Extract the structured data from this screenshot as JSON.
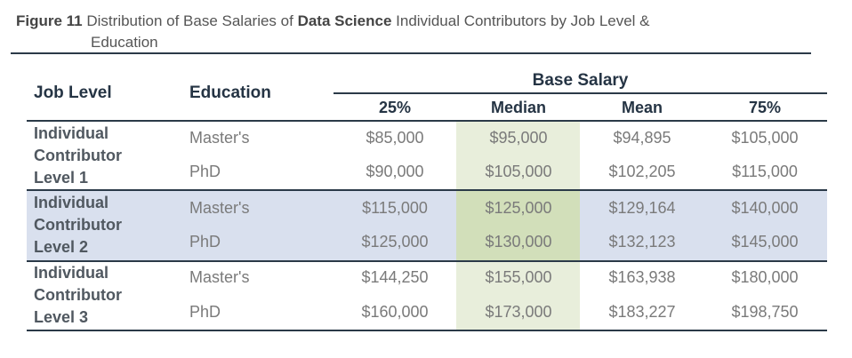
{
  "title": {
    "figure": "Figure 11",
    "pre": "Distribution of Base Salaries of",
    "bold": "Data Science",
    "post": "Individual Contributors by Job Level &",
    "line2": "Education"
  },
  "headers": {
    "job_level": "Job Level",
    "education": "Education",
    "group": "Base Salary",
    "cols": [
      "25%",
      "Median",
      "Mean",
      "75%"
    ]
  },
  "rows": [
    {
      "level": [
        "Individual",
        "Contributor",
        "Level 1"
      ],
      "items": [
        {
          "education": "Master's",
          "values": [
            "$85,000",
            "$95,000",
            "$94,895",
            "$105,000"
          ]
        },
        {
          "education": "PhD",
          "values": [
            "$90,000",
            "$105,000",
            "$102,205",
            "$115,000"
          ]
        }
      ]
    },
    {
      "level": [
        "Individual",
        "Contributor",
        "Level 2"
      ],
      "items": [
        {
          "education": "Master's",
          "values": [
            "$115,000",
            "$125,000",
            "$129,164",
            "$140,000"
          ]
        },
        {
          "education": "PhD",
          "values": [
            "$125,000",
            "$130,000",
            "$132,123",
            "$145,000"
          ]
        }
      ]
    },
    {
      "level": [
        "Individual",
        "Contributor",
        "Level 3"
      ],
      "items": [
        {
          "education": "Master's",
          "values": [
            "$144,250",
            "$155,000",
            "$163,938",
            "$180,000"
          ]
        },
        {
          "education": "PhD",
          "values": [
            "$160,000",
            "$173,000",
            "$183,227",
            "$198,750"
          ]
        }
      ]
    }
  ],
  "colors": {
    "band": "#d9e0ee",
    "median": "#e8eedb",
    "rule": "#2b3a48"
  }
}
